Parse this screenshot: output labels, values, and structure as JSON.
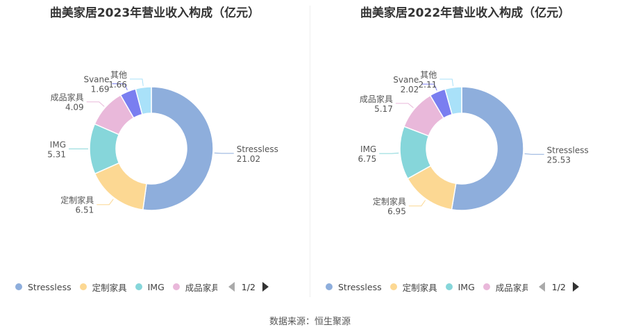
{
  "colors": [
    "#8eaedc",
    "#fcd893",
    "#86d6da",
    "#e9b8da",
    "#7a7ef0",
    "#a9e1f9"
  ],
  "chart_data": [
    {
      "type": "pie",
      "title": "曲美家居2023年营业收入构成（亿元）",
      "slices": [
        {
          "label": "Stressless",
          "value": 21.02,
          "value_text": "21.02"
        },
        {
          "label": "定制家具",
          "value": 6.51,
          "value_text": "6.51"
        },
        {
          "label": "IMG",
          "value": 5.31,
          "value_text": "5.31"
        },
        {
          "label": "成品家具",
          "value": 4.09,
          "value_text": "4.09"
        },
        {
          "label": "Svane",
          "value": 1.69,
          "value_text": "1.69"
        },
        {
          "label": "其他",
          "value": 1.66,
          "value_text": "1.66"
        }
      ],
      "legend": {
        "items": [
          "Stressless",
          "定制家具",
          "IMG",
          "成品家具"
        ],
        "page": "1/2",
        "placement": "bottom"
      }
    },
    {
      "type": "pie",
      "title": "曲美家居2022年营业收入构成（亿元）",
      "slices": [
        {
          "label": "Stressless",
          "value": 25.53,
          "value_text": "25.53"
        },
        {
          "label": "定制家具",
          "value": 6.95,
          "value_text": "6.95"
        },
        {
          "label": "IMG",
          "value": 6.75,
          "value_text": "6.75"
        },
        {
          "label": "成品家具",
          "value": 5.17,
          "value_text": "5.17"
        },
        {
          "label": "Svane",
          "value": 2.02,
          "value_text": "2.02"
        },
        {
          "label": "其他",
          "value": 2.11,
          "value_text": "2.11"
        }
      ],
      "legend": {
        "items": [
          "Stressless",
          "定制家具",
          "IMG",
          "成品家具"
        ],
        "page": "1/2",
        "placement": "bottom"
      }
    }
  ],
  "source": "数据来源：恒生聚源"
}
